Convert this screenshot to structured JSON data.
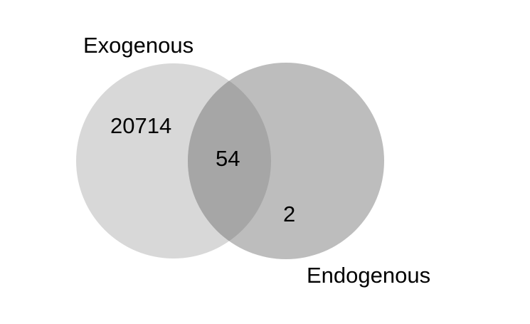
{
  "venn": {
    "sets": [
      {
        "label": "Exogenous",
        "color": "#d8d8d8"
      },
      {
        "label": "Endogenous",
        "color": "#bdbdbd"
      }
    ],
    "counts": {
      "exogenous_only": "20714",
      "intersection": "54",
      "endogenous_only": "2"
    },
    "colors": {
      "intersection": "#a6a6a6",
      "background": "#ffffff",
      "text": "#000000"
    }
  }
}
